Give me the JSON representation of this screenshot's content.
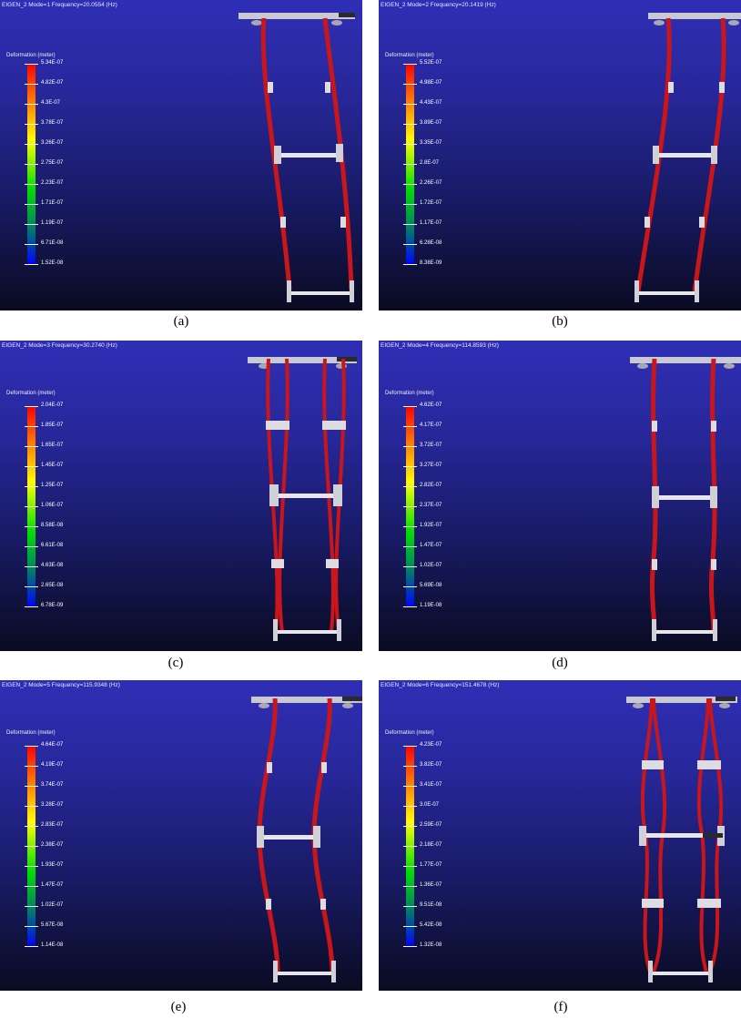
{
  "legend_title": "Deformation (meter)",
  "panels": [
    {
      "title": "EIGEN_2 Mode=1 Frequency=20.0554 (Hz)",
      "caption": "(a)",
      "ticks": [
        "5.34E-07",
        "4.82E-07",
        "4.3E-07",
        "3.78E-07",
        "3.26E-07",
        "2.75E-07",
        "2.23E-07",
        "1.71E-07",
        "1.19E-07",
        "6.71E-08",
        "1.52E-08"
      ]
    },
    {
      "title": "EIGEN_2 Mode=2 Frequency=20.1419 (Hz)",
      "caption": "(b)",
      "ticks": [
        "5.52E-07",
        "4.98E-07",
        "4.43E-07",
        "3.89E-07",
        "3.35E-07",
        "2.8E-07",
        "2.26E-07",
        "1.72E-07",
        "1.17E-07",
        "6.28E-08",
        "8.38E-09"
      ]
    },
    {
      "title": "EIGEN_2 Mode=3 Frequency=30.2740 (Hz)",
      "caption": "(c)",
      "ticks": [
        "2.04E-07",
        "1.85E-07",
        "1.65E-07",
        "1.45E-07",
        "1.25E-07",
        "1.06E-07",
        "8.58E-08",
        "6.61E-08",
        "4.63E-08",
        "2.65E-08",
        "6.78E-09"
      ]
    },
    {
      "title": "EIGEN_2 Mode=4 Frequency=114.8593 (Hz)",
      "caption": "(d)",
      "ticks": [
        "4.62E-07",
        "4.17E-07",
        "3.72E-07",
        "3.27E-07",
        "2.82E-07",
        "2.37E-07",
        "1.92E-07",
        "1.47E-07",
        "1.02E-07",
        "5.69E-08",
        "1.19E-08"
      ]
    },
    {
      "title": "EIGEN_2 Mode=5 Frequency=115.9348 (Hz)",
      "caption": "(e)",
      "ticks": [
        "4.64E-07",
        "4.19E-07",
        "3.74E-07",
        "3.28E-07",
        "2.83E-07",
        "2.38E-07",
        "1.93E-07",
        "1.47E-07",
        "1.02E-07",
        "5.67E-08",
        "1.14E-08"
      ]
    },
    {
      "title": "EIGEN_2 Mode=6 Frequency=151.4678 (Hz)",
      "caption": "(f)",
      "ticks": [
        "4.23E-07",
        "3.82E-07",
        "3.41E-07",
        "3.0E-07",
        "2.59E-07",
        "2.18E-07",
        "1.77E-07",
        "1.36E-07",
        "9.51E-08",
        "5.42E-08",
        "1.32E-08"
      ]
    }
  ]
}
